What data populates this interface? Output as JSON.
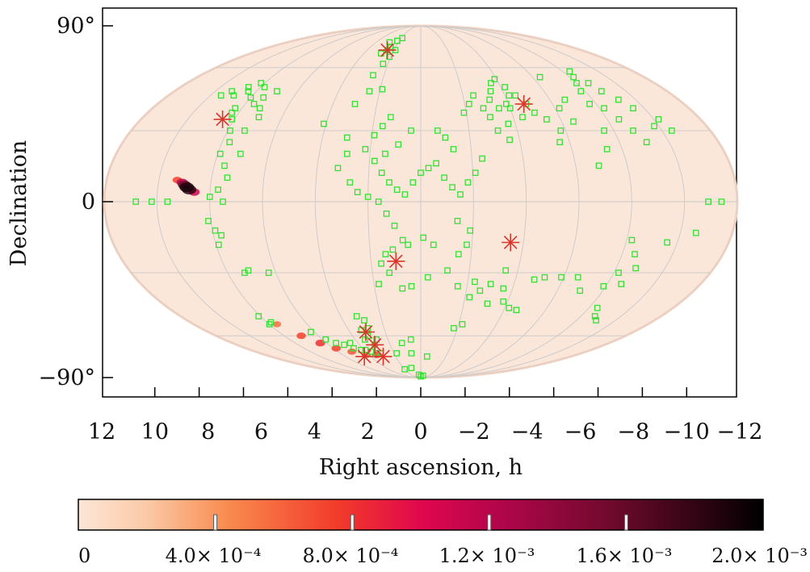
{
  "chart_data": {
    "type": "scatter",
    "projection": "mollweide",
    "title": "",
    "xlabel": "Right ascension, h",
    "ylabel": "Declination",
    "x_ticks": [
      "12",
      "10",
      "8",
      "6",
      "4",
      "2",
      "0",
      "−2",
      "−4",
      "−6",
      "−8",
      "−10",
      "−12"
    ],
    "x_tick_values": [
      12,
      10,
      8,
      6,
      4,
      2,
      0,
      -2,
      -4,
      -6,
      -8,
      -10,
      -12
    ],
    "y_ticks": [
      "90°",
      "0",
      "−90°"
    ],
    "y_tick_values": [
      90,
      0,
      -90
    ],
    "xlim": [
      12,
      -12
    ],
    "ylim": [
      -90,
      90
    ],
    "grid": true,
    "background_probability_color": "#fbe6da",
    "colors": {
      "galaxies": "#35e035",
      "stars": "#d9352b",
      "grid": "#c9c9c9"
    },
    "colorbar": {
      "min": 0,
      "max": 0.002,
      "tick_labels": [
        "0",
        "4.0× 10⁻⁴",
        "8.0× 10⁻⁴",
        "1.2× 10⁻³",
        "1.6× 10⁻³",
        "2.0× 10⁻³"
      ],
      "tick_values": [
        0,
        0.0004,
        0.0008,
        0.0012,
        0.0016,
        0.002
      ],
      "stops": [
        {
          "at": 0.0,
          "color": "#fde6d8"
        },
        {
          "at": 0.1,
          "color": "#fbc9a6"
        },
        {
          "at": 0.22,
          "color": "#f98a4e"
        },
        {
          "at": 0.38,
          "color": "#f23a2a"
        },
        {
          "at": 0.5,
          "color": "#e0074e"
        },
        {
          "at": 0.62,
          "color": "#b0064a"
        },
        {
          "at": 0.78,
          "color": "#6e0a2c"
        },
        {
          "at": 1.0,
          "color": "#000000"
        }
      ]
    },
    "probability_region": [
      {
        "ra": 8.9,
        "dec": 6,
        "p": 1.0
      },
      {
        "ra": 8.8,
        "dec": 5,
        "p": 0.95
      },
      {
        "ra": 9.0,
        "dec": 7,
        "p": 0.8
      },
      {
        "ra": 9.1,
        "dec": 8,
        "p": 0.6
      },
      {
        "ra": 8.6,
        "dec": 4,
        "p": 0.55
      },
      {
        "ra": 9.3,
        "dec": 9,
        "p": 0.35
      },
      {
        "ra": 7.6,
        "dec": -54,
        "p": 0.25
      },
      {
        "ra": 7.0,
        "dec": -60,
        "p": 0.35
      },
      {
        "ra": 6.4,
        "dec": -64,
        "p": 0.4
      },
      {
        "ra": 5.8,
        "dec": -67,
        "p": 0.35
      },
      {
        "ra": 5.0,
        "dec": -69,
        "p": 0.3
      },
      {
        "ra": 4.2,
        "dec": -71,
        "p": 0.3
      },
      {
        "ra": 3.4,
        "dec": -71,
        "p": 0.35
      }
    ],
    "series": [
      {
        "marker": "open-square",
        "points": [
          [
            8.4,
            48
          ],
          [
            8.2,
            52
          ],
          [
            8.0,
            45
          ],
          [
            7.8,
            50
          ],
          [
            7.6,
            42
          ],
          [
            8.3,
            40
          ],
          [
            8.1,
            35
          ],
          [
            7.9,
            30
          ],
          [
            7.7,
            25
          ],
          [
            7.9,
            20
          ],
          [
            7.6,
            15
          ],
          [
            7.4,
            10
          ],
          [
            7.7,
            5
          ],
          [
            8.0,
            2
          ],
          [
            7.5,
            0
          ],
          [
            8.3,
            38
          ],
          [
            8.6,
            50
          ],
          [
            8.9,
            46
          ],
          [
            9.2,
            48
          ],
          [
            9.5,
            46
          ],
          [
            7.2,
            40
          ],
          [
            7.0,
            36
          ],
          [
            7.3,
            30
          ],
          [
            7.1,
            20
          ],
          [
            7.4,
            45
          ],
          [
            7.0,
            48
          ],
          [
            8.1,
            -8
          ],
          [
            7.9,
            -12
          ],
          [
            7.7,
            -14
          ],
          [
            7.9,
            -18
          ],
          [
            8.0,
            -54
          ],
          [
            7.8,
            -53
          ],
          [
            8.1,
            -50
          ],
          [
            7.3,
            -30
          ],
          [
            7.1,
            -29
          ],
          [
            6.3,
            -30
          ],
          [
            6.2,
            -58
          ],
          [
            5.8,
            -62
          ],
          [
            5.4,
            -64
          ],
          [
            5.0,
            -65
          ],
          [
            4.6,
            -67
          ],
          [
            4.2,
            -68
          ],
          [
            3.9,
            -68
          ],
          [
            3.6,
            -69
          ],
          [
            3.3,
            -70
          ],
          [
            3.0,
            -70
          ],
          [
            3.4,
            -62
          ],
          [
            3.1,
            -60
          ],
          [
            2.9,
            -56
          ],
          [
            3.3,
            -57
          ],
          [
            2.7,
            -62
          ],
          [
            3.0,
            -65
          ],
          [
            2.9,
            -52
          ],
          [
            3.2,
            -50
          ],
          [
            4.5,
            -64
          ],
          [
            4.1,
            33
          ],
          [
            3.0,
            42
          ],
          [
            2.5,
            48
          ],
          [
            1.9,
            49
          ],
          [
            2.6,
            56
          ],
          [
            2.3,
            62
          ],
          [
            2.1,
            66
          ],
          [
            2.8,
            68
          ],
          [
            2.5,
            70
          ],
          [
            2.4,
            72
          ],
          [
            2.2,
            76
          ],
          [
            1.9,
            70
          ],
          [
            1.9,
            78
          ],
          [
            2.8,
            75
          ],
          [
            2.2,
            76
          ],
          [
            1.3,
            36
          ],
          [
            1.6,
            32
          ],
          [
            1.9,
            28
          ],
          [
            2.2,
            22
          ],
          [
            1.8,
            17
          ],
          [
            1.5,
            12
          ],
          [
            1.2,
            8
          ],
          [
            0.9,
            5
          ],
          [
            0.6,
            3
          ],
          [
            0.3,
            8
          ],
          [
            0.0,
            12
          ],
          [
            -0.3,
            14
          ],
          [
            -0.6,
            16
          ],
          [
            -0.9,
            10
          ],
          [
            -1.2,
            6
          ],
          [
            -1.5,
            3
          ],
          [
            -1.8,
            8
          ],
          [
            -2.1,
            12
          ],
          [
            -2.4,
            18
          ],
          [
            -1.3,
            22
          ],
          [
            -1.0,
            27
          ],
          [
            -0.7,
            30
          ],
          [
            0.4,
            30
          ],
          [
            0.9,
            24
          ],
          [
            1.4,
            20
          ],
          [
            2.4,
            4
          ],
          [
            2.0,
            2
          ],
          [
            1.6,
            0
          ],
          [
            1.3,
            -5
          ],
          [
            1.0,
            -10
          ],
          [
            0.7,
            -16
          ],
          [
            1.1,
            -20
          ],
          [
            1.4,
            -22
          ],
          [
            1.6,
            -26
          ],
          [
            1.3,
            -30
          ],
          [
            0.5,
            -18
          ],
          [
            -0.1,
            -15
          ],
          [
            -0.5,
            -18
          ],
          [
            -1.5,
            -22
          ],
          [
            -1.8,
            -18
          ],
          [
            -1.4,
            -8
          ],
          [
            -1.9,
            -12
          ],
          [
            2.9,
            20
          ],
          [
            3.0,
            27
          ],
          [
            3.2,
            14
          ],
          [
            2.7,
            8
          ],
          [
            1.8,
            -35
          ],
          [
            0.8,
            -37
          ],
          [
            0.4,
            -36
          ],
          [
            -0.3,
            -32
          ],
          [
            -1.1,
            -29
          ],
          [
            -1.6,
            -36
          ],
          [
            -2.3,
            -34
          ],
          [
            -1.9,
            38
          ],
          [
            -2.2,
            42
          ],
          [
            -2.5,
            46
          ],
          [
            -2.8,
            40
          ],
          [
            -3.0,
            36
          ],
          [
            -3.2,
            44
          ],
          [
            -3.4,
            48
          ],
          [
            -3.6,
            52
          ],
          [
            -3.9,
            54
          ],
          [
            -4.2,
            50
          ],
          [
            -4.5,
            46
          ],
          [
            -4.8,
            42
          ],
          [
            -5.0,
            38
          ],
          [
            -5.4,
            35
          ],
          [
            -5.8,
            30
          ],
          [
            -5.6,
            25
          ],
          [
            -4.0,
            40
          ],
          [
            -4.4,
            36
          ],
          [
            -3.7,
            33
          ],
          [
            -3.5,
            40
          ],
          [
            -3.9,
            42
          ],
          [
            -4.2,
            46
          ],
          [
            -3.2,
            30
          ],
          [
            -3.6,
            26
          ],
          [
            -6.2,
            40
          ],
          [
            -6.7,
            44
          ],
          [
            -6.5,
            34
          ],
          [
            -6.4,
            55
          ],
          [
            -7.7,
            42
          ],
          [
            -7.8,
            48
          ],
          [
            -8.0,
            52
          ],
          [
            -8.2,
            55
          ],
          [
            -8.4,
            58
          ],
          [
            -8.6,
            52
          ],
          [
            -8.8,
            48
          ],
          [
            -9.2,
            44
          ],
          [
            -9.5,
            40
          ],
          [
            -8.2,
            40
          ],
          [
            -8.5,
            35
          ],
          [
            -8.8,
            30
          ],
          [
            -9.1,
            25
          ],
          [
            -7.6,
            30
          ],
          [
            -7.4,
            22
          ],
          [
            -6.9,
            15
          ],
          [
            -9.8,
            32
          ],
          [
            -10.2,
            35
          ],
          [
            -10.4,
            30
          ],
          [
            -3.5,
            -29
          ],
          [
            -3.0,
            -35
          ],
          [
            -2.6,
            -38
          ],
          [
            -2.2,
            -41
          ],
          [
            -3.8,
            -43
          ],
          [
            -4.2,
            -46
          ],
          [
            -4.6,
            -47
          ],
          [
            -2.2,
            -54
          ],
          [
            -1.8,
            -56
          ],
          [
            -3.6,
            -37
          ],
          [
            -3.1,
            -44
          ],
          [
            -8.2,
            -16
          ],
          [
            -8.5,
            -22
          ],
          [
            -8.2,
            -30
          ],
          [
            -8.6,
            -35
          ],
          [
            -7.9,
            -36
          ],
          [
            -8.8,
            -28
          ],
          [
            -9.6,
            -17
          ],
          [
            -10.6,
            -13
          ],
          [
            -8.4,
            -46
          ],
          [
            -8.7,
            -50
          ],
          [
            -9.0,
            -52
          ],
          [
            -6.6,
            -32
          ],
          [
            -5.9,
            -32
          ],
          [
            -5.2,
            -32
          ],
          [
            -4.8,
            -33
          ],
          [
            -7.0,
            -38
          ],
          [
            10.8,
            0
          ],
          [
            10.2,
            0
          ],
          [
            9.6,
            0
          ],
          [
            -10.9,
            0
          ],
          [
            -11.4,
            0
          ],
          [
            0.4,
            -86
          ],
          [
            0.0,
            -88
          ],
          [
            -0.6,
            -87
          ],
          [
            1.8,
            -70
          ],
          [
            0.6,
            -62
          ],
          [
            0.7,
            -70
          ],
          [
            -0.5,
            -72
          ],
          [
            1.2,
            -64
          ],
          [
            2.0,
            -81
          ],
          [
            1.1,
            -80
          ]
        ]
      },
      {
        "marker": "asterisk",
        "points": [
          [
            2.5,
            70
          ],
          [
            8.5,
            35
          ],
          [
            -4.7,
            42
          ],
          [
            1.0,
            -25
          ],
          [
            -3.5,
            -17
          ],
          [
            3.1,
            -58
          ],
          [
            3.0,
            -65
          ],
          [
            4.5,
            -72
          ],
          [
            3.0,
            -72
          ]
        ]
      }
    ]
  }
}
